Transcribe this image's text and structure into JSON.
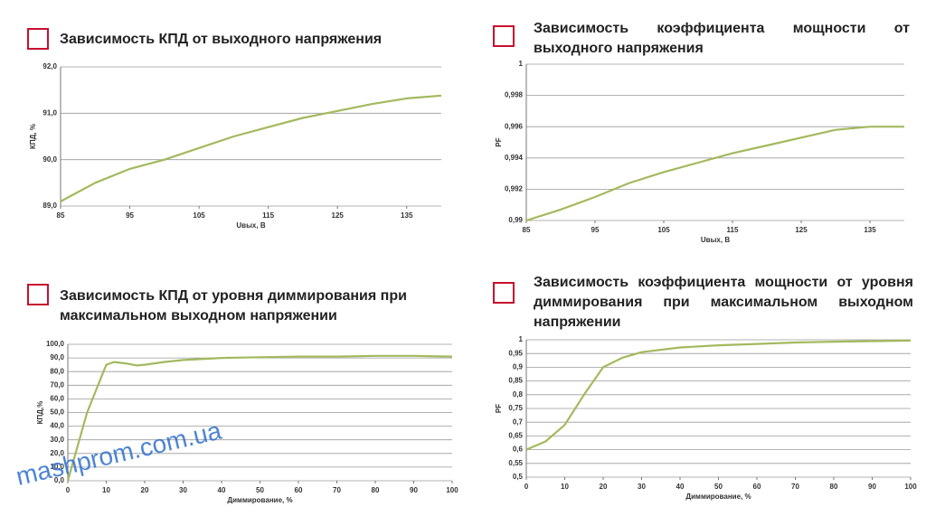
{
  "chart_data": [
    {
      "type": "line",
      "title": "Зависимость КПД от выходного напряжения",
      "x_label": "Uвых, В",
      "y_label": "КПД, %",
      "x": [
        85,
        90,
        95,
        100,
        105,
        110,
        115,
        120,
        125,
        130,
        135,
        140
      ],
      "series": [
        {
          "color": "#a3b95d",
          "values": [
            89.1,
            89.5,
            89.8,
            90.0,
            90.25,
            90.5,
            90.7,
            90.9,
            91.05,
            91.2,
            91.32,
            91.38
          ]
        }
      ],
      "xlim": [
        85,
        140
      ],
      "xticks": [
        85,
        95,
        105,
        115,
        125,
        135
      ],
      "ylim": [
        89,
        92
      ],
      "yticks": [
        {
          "value": 89,
          "label": "89,0"
        },
        {
          "value": 90,
          "label": "90,0"
        },
        {
          "value": 91,
          "label": "91,0"
        },
        {
          "value": 92,
          "label": "92,0"
        }
      ],
      "grid": true
    },
    {
      "type": "line",
      "title": "Зависимость коэффициента мощности от выходного напряжения",
      "x_label": "Uвых, В",
      "y_label": "PF",
      "x": [
        85,
        90,
        95,
        100,
        105,
        110,
        115,
        120,
        125,
        130,
        135,
        140
      ],
      "series": [
        {
          "color": "#a3b95d",
          "values": [
            0.99,
            0.9907,
            0.9915,
            0.9924,
            0.9931,
            0.9937,
            0.9943,
            0.9948,
            0.9953,
            0.9958,
            0.996,
            0.996
          ]
        }
      ],
      "xlim": [
        85,
        140
      ],
      "xticks": [
        85,
        95,
        105,
        115,
        125,
        135
      ],
      "ylim": [
        0.99,
        1
      ],
      "yticks": [
        {
          "value": 0.99,
          "label": "0,99"
        },
        {
          "value": 0.992,
          "label": "0,992"
        },
        {
          "value": 0.994,
          "label": "0,994"
        },
        {
          "value": 0.996,
          "label": "0,996"
        },
        {
          "value": 0.998,
          "label": "0,998"
        },
        1
      ],
      "grid": true
    },
    {
      "type": "line",
      "title": "Зависимость КПД от уровня диммирования при максимальном выходном напряжении",
      "x_label": "Диммирование, %",
      "y_label": "КПД,%",
      "x": [
        0,
        5,
        10,
        12,
        15,
        18,
        20,
        25,
        30,
        40,
        50,
        60,
        70,
        80,
        90,
        100
      ],
      "series": [
        {
          "color": "#a3b95d",
          "values": [
            0,
            50,
            85,
            87,
            86,
            84.5,
            85,
            87,
            88.5,
            90,
            90.5,
            91,
            91,
            91.5,
            91.5,
            91
          ]
        }
      ],
      "xlim": [
        0,
        100
      ],
      "xticks": [
        0,
        10,
        20,
        30,
        40,
        50,
        60,
        70,
        80,
        90,
        100
      ],
      "ylim": [
        0,
        100
      ],
      "yticks": [
        {
          "value": 0,
          "label": "0,0"
        },
        {
          "value": 10,
          "label": "10,0"
        },
        {
          "value": 20,
          "label": "20,0"
        },
        {
          "value": 30,
          "label": "30,0"
        },
        {
          "value": 40,
          "label": "40,0"
        },
        {
          "value": 50,
          "label": "50,0"
        },
        {
          "value": 60,
          "label": "60,0"
        },
        {
          "value": 70,
          "label": "70,0"
        },
        {
          "value": 80,
          "label": "80,0"
        },
        {
          "value": 90,
          "label": "90,0"
        },
        {
          "value": 100,
          "label": "100,0"
        }
      ],
      "grid": true
    },
    {
      "type": "line",
      "title": "Зависимость коэффициента мощности от уровня диммирования при максимальном выходном напряжении",
      "x_label": "Диммирование, %",
      "y_label": "PF",
      "x": [
        0,
        5,
        10,
        15,
        20,
        25,
        30,
        40,
        50,
        60,
        70,
        80,
        90,
        100
      ],
      "series": [
        {
          "color": "#a3b95d",
          "values": [
            0.6,
            0.63,
            0.69,
            0.8,
            0.9,
            0.935,
            0.955,
            0.972,
            0.98,
            0.985,
            0.99,
            0.993,
            0.995,
            0.997
          ]
        }
      ],
      "xlim": [
        0,
        100
      ],
      "xticks": [
        0,
        10,
        20,
        30,
        40,
        50,
        60,
        70,
        80,
        90,
        100
      ],
      "ylim": [
        0.5,
        1
      ],
      "yticks": [
        {
          "value": 0.5,
          "label": "0,5"
        },
        {
          "value": 0.55,
          "label": "0,55"
        },
        {
          "value": 0.6,
          "label": "0,6"
        },
        {
          "value": 0.65,
          "label": "0,65"
        },
        {
          "value": 0.7,
          "label": "0,7"
        },
        {
          "value": 0.75,
          "label": "0,75"
        },
        {
          "value": 0.8,
          "label": "0,8"
        },
        {
          "value": 0.85,
          "label": "0,85"
        },
        {
          "value": 0.9,
          "label": "0,9"
        },
        {
          "value": 0.95,
          "label": "0,95"
        },
        1
      ],
      "grid": true
    }
  ],
  "watermark": "mashprom.com.ua"
}
